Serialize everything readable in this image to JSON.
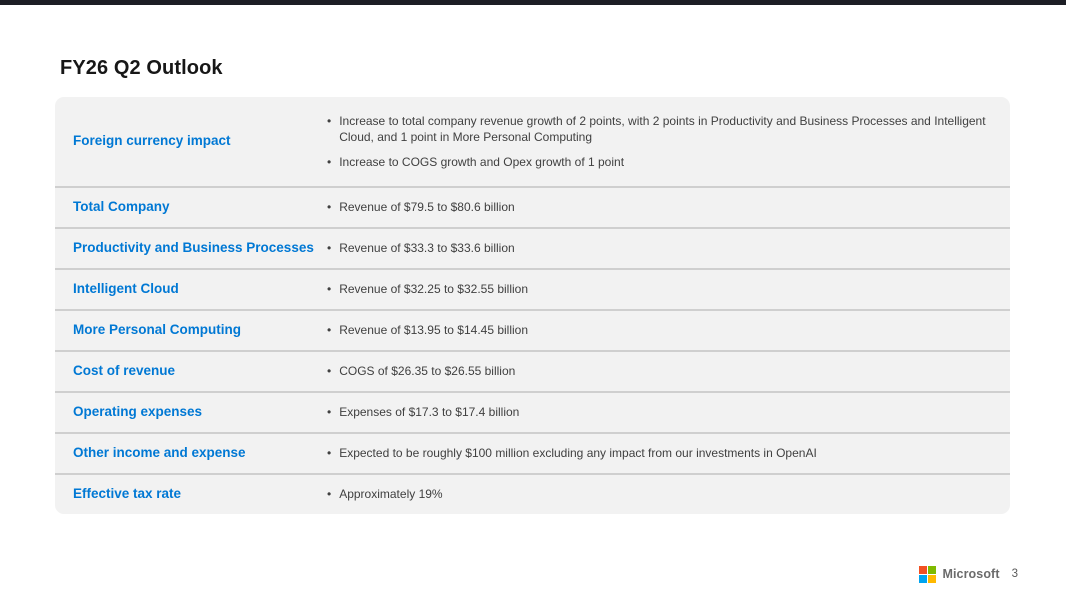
{
  "slide": {
    "title": "FY26 Q2 Outlook"
  },
  "table": {
    "rows": [
      {
        "label": "Foreign currency impact",
        "bullets": [
          "Increase to total company revenue growth of 2 points, with 2 points in Productivity and Business Processes and Intelligent Cloud, and 1 point in More Personal Computing",
          "Increase to COGS growth and Opex growth of 1 point"
        ]
      },
      {
        "label": "Total Company",
        "bullets": [
          "Revenue of $79.5 to $80.6 billion"
        ]
      },
      {
        "label": "Productivity and Business Processes",
        "bullets": [
          "Revenue of $33.3 to $33.6 billion"
        ]
      },
      {
        "label": "Intelligent Cloud",
        "bullets": [
          "Revenue of $32.25 to $32.55 billion"
        ]
      },
      {
        "label": "More Personal Computing",
        "bullets": [
          "Revenue of $13.95 to $14.45 billion"
        ]
      },
      {
        "label": "Cost of revenue",
        "bullets": [
          "COGS of $26.35 to $26.55 billion"
        ]
      },
      {
        "label": "Operating expenses",
        "bullets": [
          "Expenses of $17.3 to $17.4 billion"
        ]
      },
      {
        "label": "Other income and expense",
        "bullets": [
          "Expected to be roughly $100 million excluding any impact from our investments in OpenAI"
        ]
      },
      {
        "label": "Effective tax rate",
        "bullets": [
          "Approximately 19%"
        ]
      }
    ]
  },
  "footer": {
    "brand": "Microsoft",
    "page_number": "3"
  },
  "colors": {
    "accent_blue": "#0078D4",
    "row_background": "#F2F2F2",
    "row_divider": "#CFCFCF",
    "top_bar": "#1D1E25",
    "bullet_text": "#404040",
    "logo_red": "#F25022",
    "logo_green": "#7FBA00",
    "logo_blue": "#00A4EF",
    "logo_yellow": "#FFB900"
  }
}
